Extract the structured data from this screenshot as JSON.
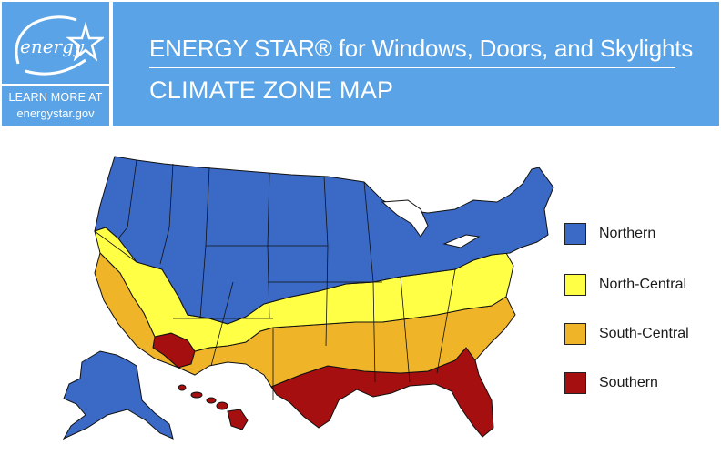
{
  "header": {
    "title_main": "ENERGY STAR® for Windows, Doors, and Skylights",
    "subtitle": "CLIMATE ZONE MAP"
  },
  "logo": {
    "script": "energy",
    "learn_more": "LEARN MORE AT",
    "url": "energystar.gov",
    "icon": "energy-star-logo-icon"
  },
  "colors": {
    "brand_blue": "#5aa3e6",
    "northern": "#3b69c6",
    "north_central": "#ffff45",
    "south_central": "#f0b429",
    "southern": "#a50f0f"
  },
  "legend": {
    "items": [
      {
        "label": "Northern",
        "color": "#3b69c6"
      },
      {
        "label": "North-Central",
        "color": "#ffff45"
      },
      {
        "label": "South-Central",
        "color": "#f0b429"
      },
      {
        "label": "Southern",
        "color": "#a50f0f"
      }
    ]
  }
}
